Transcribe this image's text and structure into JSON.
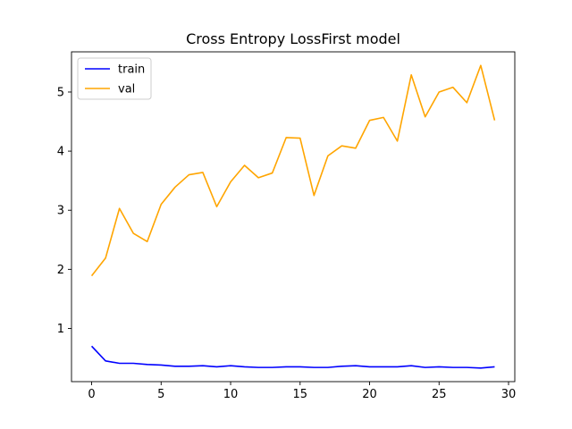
{
  "chart_data": {
    "type": "line",
    "title": "Cross Entropy LossFirst model",
    "xlabel": "",
    "ylabel": "",
    "xlim": [
      -1.45,
      30.45
    ],
    "ylim": [
      0.1,
      5.68
    ],
    "xticks": [
      0,
      5,
      10,
      15,
      20,
      25,
      30
    ],
    "yticks": [
      1,
      2,
      3,
      4,
      5
    ],
    "grid": false,
    "legend_position": "upper-left",
    "x": [
      0,
      1,
      2,
      3,
      4,
      5,
      6,
      7,
      8,
      9,
      10,
      11,
      12,
      13,
      14,
      15,
      16,
      17,
      18,
      19,
      20,
      21,
      22,
      23,
      24,
      25,
      26,
      27,
      28,
      29
    ],
    "series": [
      {
        "name": "train",
        "color": "#0000ff",
        "values": [
          0.7,
          0.45,
          0.41,
          0.41,
          0.39,
          0.38,
          0.36,
          0.36,
          0.37,
          0.35,
          0.37,
          0.35,
          0.34,
          0.34,
          0.35,
          0.35,
          0.34,
          0.34,
          0.36,
          0.37,
          0.35,
          0.35,
          0.35,
          0.37,
          0.34,
          0.35,
          0.34,
          0.34,
          0.33,
          0.35
        ]
      },
      {
        "name": "val",
        "color": "#ffa500",
        "values": [
          1.89,
          2.19,
          3.03,
          2.61,
          2.47,
          3.1,
          3.39,
          3.6,
          3.64,
          3.06,
          3.48,
          3.76,
          3.55,
          3.63,
          4.23,
          4.22,
          3.25,
          3.92,
          4.09,
          4.05,
          4.52,
          4.57,
          4.17,
          5.29,
          4.58,
          5.0,
          5.08,
          4.82,
          5.45,
          4.52
        ]
      }
    ]
  }
}
